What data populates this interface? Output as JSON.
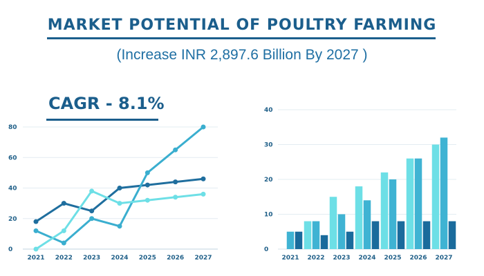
{
  "header": {
    "title": "MARKET POTENTIAL  OF POULTRY FARMING",
    "subtitle": "(Increase INR 2,897.6  Billion By 2027 )",
    "cagr": "CAGR  - 8.1%"
  },
  "colors": {
    "dark": "#1a6b9c",
    "mid": "#3fb3d3",
    "light": "#6ddfe6",
    "grid": "#e3ecf2",
    "title": "#1b5e8c"
  },
  "chart_data": [
    {
      "type": "line",
      "categories": [
        "2021",
        "2022",
        "2023",
        "2024",
        "2025",
        "2026",
        "2027"
      ],
      "ylim": [
        0,
        80
      ],
      "yticks": [
        0,
        20,
        40,
        60,
        80
      ],
      "grid": true,
      "series": [
        {
          "name": "dark",
          "color": "#1f6e9e",
          "values": [
            18,
            30,
            25,
            40,
            42,
            44,
            46
          ]
        },
        {
          "name": "mid",
          "color": "#3aaecf",
          "values": [
            12,
            4,
            20,
            15,
            50,
            65,
            80
          ]
        },
        {
          "name": "light",
          "color": "#6ddfe6",
          "values": [
            0,
            12,
            38,
            30,
            32,
            34,
            36
          ]
        }
      ]
    },
    {
      "type": "bar",
      "categories": [
        "2021",
        "2022",
        "2023",
        "2024",
        "2025",
        "2026",
        "2027"
      ],
      "ylim": [
        0,
        40
      ],
      "yticks": [
        0,
        10,
        20,
        30,
        40
      ],
      "grid": true,
      "series": [
        {
          "name": "light",
          "color": "#6ddfe6",
          "values": [
            0,
            8,
            15,
            18,
            22,
            26,
            30
          ]
        },
        {
          "name": "mid",
          "color": "#3fb3d3",
          "values": [
            5,
            8,
            10,
            14,
            20,
            26,
            32
          ]
        },
        {
          "name": "dark",
          "color": "#1a6b9c",
          "values": [
            5,
            4,
            5,
            8,
            8,
            8,
            8
          ]
        }
      ]
    }
  ]
}
